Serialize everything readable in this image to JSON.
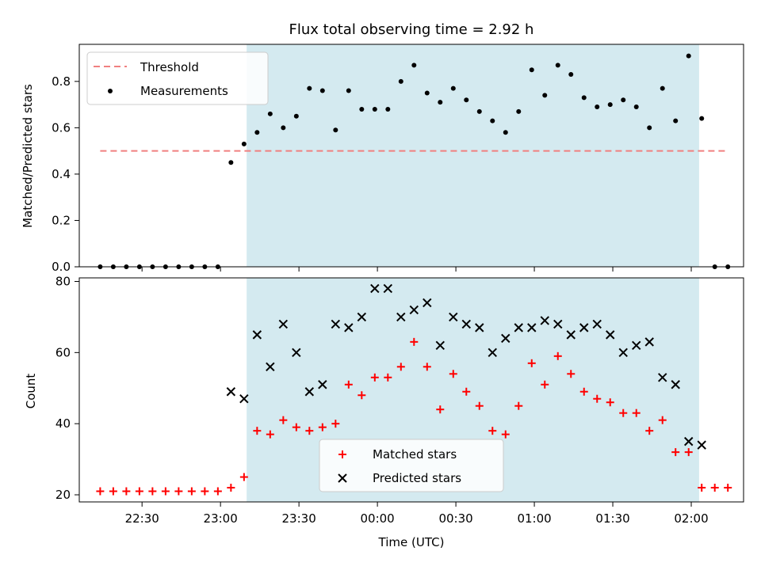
{
  "chart_data": [
    {
      "type": "scatter",
      "title": "Flux total observing time = 2.92 h",
      "xlabel": "",
      "ylabel": "Matched/Predicted stars",
      "ylim": [
        0,
        0.96
      ],
      "yticks": [
        "0.0",
        "0.2",
        "0.4",
        "0.6",
        "0.8"
      ],
      "x_range": [
        "22:06",
        "02:20"
      ],
      "observing_window": [
        "23:10",
        "02:03"
      ],
      "observing_window_color": "#d4eaf0",
      "threshold": {
        "name": "Threshold",
        "value": 0.5,
        "x_start": "22:14",
        "x_end": "02:14",
        "color": "#f08080",
        "style": "dashed"
      },
      "series": [
        {
          "name": "Measurements",
          "color": "#000000",
          "marker": "dot",
          "points": [
            [
              "22:14",
              0.0
            ],
            [
              "22:19",
              0.0
            ],
            [
              "22:24",
              0.0
            ],
            [
              "22:29",
              0.0
            ],
            [
              "22:34",
              0.0
            ],
            [
              "22:39",
              0.0
            ],
            [
              "22:44",
              0.0
            ],
            [
              "22:49",
              0.0
            ],
            [
              "22:54",
              0.0
            ],
            [
              "22:59",
              0.0
            ],
            [
              "23:04",
              0.45
            ],
            [
              "23:09",
              0.53
            ],
            [
              "23:14",
              0.58
            ],
            [
              "23:19",
              0.66
            ],
            [
              "23:24",
              0.6
            ],
            [
              "23:29",
              0.65
            ],
            [
              "23:34",
              0.77
            ],
            [
              "23:39",
              0.76
            ],
            [
              "23:44",
              0.59
            ],
            [
              "23:49",
              0.76
            ],
            [
              "23:54",
              0.68
            ],
            [
              "23:59",
              0.68
            ],
            [
              "00:04",
              0.68
            ],
            [
              "00:09",
              0.8
            ],
            [
              "00:14",
              0.87
            ],
            [
              "00:19",
              0.75
            ],
            [
              "00:24",
              0.71
            ],
            [
              "00:29",
              0.77
            ],
            [
              "00:34",
              0.72
            ],
            [
              "00:39",
              0.67
            ],
            [
              "00:44",
              0.63
            ],
            [
              "00:49",
              0.58
            ],
            [
              "00:54",
              0.67
            ],
            [
              "00:59",
              0.85
            ],
            [
              "01:04",
              0.74
            ],
            [
              "01:09",
              0.87
            ],
            [
              "01:14",
              0.83
            ],
            [
              "01:19",
              0.73
            ],
            [
              "01:24",
              0.69
            ],
            [
              "01:29",
              0.7
            ],
            [
              "01:34",
              0.72
            ],
            [
              "01:39",
              0.69
            ],
            [
              "01:44",
              0.6
            ],
            [
              "01:49",
              0.77
            ],
            [
              "01:54",
              0.63
            ],
            [
              "01:59",
              0.91
            ],
            [
              "02:04",
              0.64
            ],
            [
              "02:09",
              0.0
            ],
            [
              "02:14",
              0.0
            ]
          ]
        }
      ],
      "legend": {
        "placement": "top-left",
        "entries": [
          "Threshold",
          "Measurements"
        ]
      }
    },
    {
      "type": "scatter",
      "title": "",
      "xlabel": "Time (UTC)",
      "ylabel": "Count",
      "ylim": [
        18,
        81
      ],
      "yticks": [
        "20",
        "40",
        "60",
        "80"
      ],
      "xticks": [
        "22:30",
        "23:00",
        "23:30",
        "00:00",
        "00:30",
        "01:00",
        "01:30",
        "02:00"
      ],
      "x_range": [
        "22:06",
        "02:20"
      ],
      "observing_window": [
        "23:10",
        "02:03"
      ],
      "series": [
        {
          "name": "Matched stars",
          "color": "#ff0000",
          "marker": "plus",
          "points": [
            [
              "22:14",
              21
            ],
            [
              "22:19",
              21
            ],
            [
              "22:24",
              21
            ],
            [
              "22:29",
              21
            ],
            [
              "22:34",
              21
            ],
            [
              "22:39",
              21
            ],
            [
              "22:44",
              21
            ],
            [
              "22:49",
              21
            ],
            [
              "22:54",
              21
            ],
            [
              "22:59",
              21
            ],
            [
              "23:04",
              22
            ],
            [
              "23:09",
              25
            ],
            [
              "23:14",
              38
            ],
            [
              "23:19",
              37
            ],
            [
              "23:24",
              41
            ],
            [
              "23:29",
              39
            ],
            [
              "23:34",
              38
            ],
            [
              "23:39",
              39
            ],
            [
              "23:44",
              40
            ],
            [
              "23:49",
              51
            ],
            [
              "23:54",
              48
            ],
            [
              "23:59",
              53
            ],
            [
              "00:04",
              53
            ],
            [
              "00:09",
              56
            ],
            [
              "00:14",
              63
            ],
            [
              "00:19",
              56
            ],
            [
              "00:24",
              44
            ],
            [
              "00:29",
              54
            ],
            [
              "00:34",
              49
            ],
            [
              "00:39",
              45
            ],
            [
              "00:44",
              38
            ],
            [
              "00:49",
              37
            ],
            [
              "00:54",
              45
            ],
            [
              "00:59",
              57
            ],
            [
              "01:04",
              51
            ],
            [
              "01:09",
              59
            ],
            [
              "01:14",
              54
            ],
            [
              "01:19",
              49
            ],
            [
              "01:24",
              47
            ],
            [
              "01:29",
              46
            ],
            [
              "01:34",
              43
            ],
            [
              "01:39",
              43
            ],
            [
              "01:44",
              38
            ],
            [
              "01:49",
              41
            ],
            [
              "01:54",
              32
            ],
            [
              "01:59",
              32
            ],
            [
              "02:04",
              22
            ],
            [
              "02:09",
              22
            ],
            [
              "02:14",
              22
            ]
          ]
        },
        {
          "name": "Predicted stars",
          "color": "#000000",
          "marker": "x",
          "points": [
            [
              "23:04",
              49
            ],
            [
              "23:09",
              47
            ],
            [
              "23:14",
              65
            ],
            [
              "23:19",
              56
            ],
            [
              "23:24",
              68
            ],
            [
              "23:29",
              60
            ],
            [
              "23:34",
              49
            ],
            [
              "23:39",
              51
            ],
            [
              "23:44",
              68
            ],
            [
              "23:49",
              67
            ],
            [
              "23:54",
              70
            ],
            [
              "23:59",
              78
            ],
            [
              "00:04",
              78
            ],
            [
              "00:09",
              70
            ],
            [
              "00:14",
              72
            ],
            [
              "00:19",
              74
            ],
            [
              "00:24",
              62
            ],
            [
              "00:29",
              70
            ],
            [
              "00:34",
              68
            ],
            [
              "00:39",
              67
            ],
            [
              "00:44",
              60
            ],
            [
              "00:49",
              64
            ],
            [
              "00:54",
              67
            ],
            [
              "00:59",
              67
            ],
            [
              "01:04",
              69
            ],
            [
              "01:09",
              68
            ],
            [
              "01:14",
              65
            ],
            [
              "01:19",
              67
            ],
            [
              "01:24",
              68
            ],
            [
              "01:29",
              65
            ],
            [
              "01:34",
              60
            ],
            [
              "01:39",
              62
            ],
            [
              "01:44",
              63
            ],
            [
              "01:49",
              53
            ],
            [
              "01:54",
              51
            ],
            [
              "01:59",
              35
            ],
            [
              "02:04",
              34
            ]
          ]
        }
      ],
      "legend": {
        "placement": "lower-center",
        "entries": [
          "Matched stars",
          "Predicted stars"
        ]
      }
    }
  ]
}
